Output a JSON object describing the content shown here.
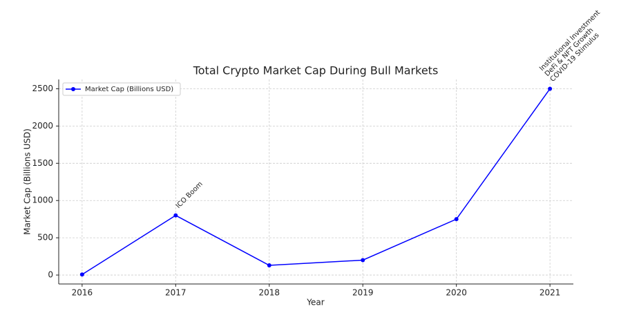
{
  "chart_data": {
    "type": "line",
    "title": "Total Crypto Market Cap During Bull Markets",
    "x_label": "Year",
    "y_label": "Market Cap (Billions USD)",
    "x": [
      2016,
      2017,
      2018,
      2019,
      2020,
      2021
    ],
    "series": [
      {
        "name": "Market Cap (Billions USD)",
        "color": "#0000ff",
        "values": [
          7,
          800,
          130,
          200,
          750,
          2500
        ]
      }
    ],
    "xlim": [
      2015.75,
      2021.25
    ],
    "xticks": [
      2016,
      2017,
      2018,
      2019,
      2020,
      2021
    ],
    "ylim": [
      -120,
      2625
    ],
    "yticks": [
      0,
      500,
      1000,
      1500,
      2000,
      2500
    ],
    "grid": true,
    "legend": "upper-left",
    "annotations": [
      {
        "x": 2017,
        "lines": [
          "ICO Boom"
        ]
      },
      {
        "x": 2021,
        "lines": [
          "Institutional Investment",
          "DeFi & NFT Growth",
          "COVID-19 Stimulus"
        ]
      }
    ]
  }
}
